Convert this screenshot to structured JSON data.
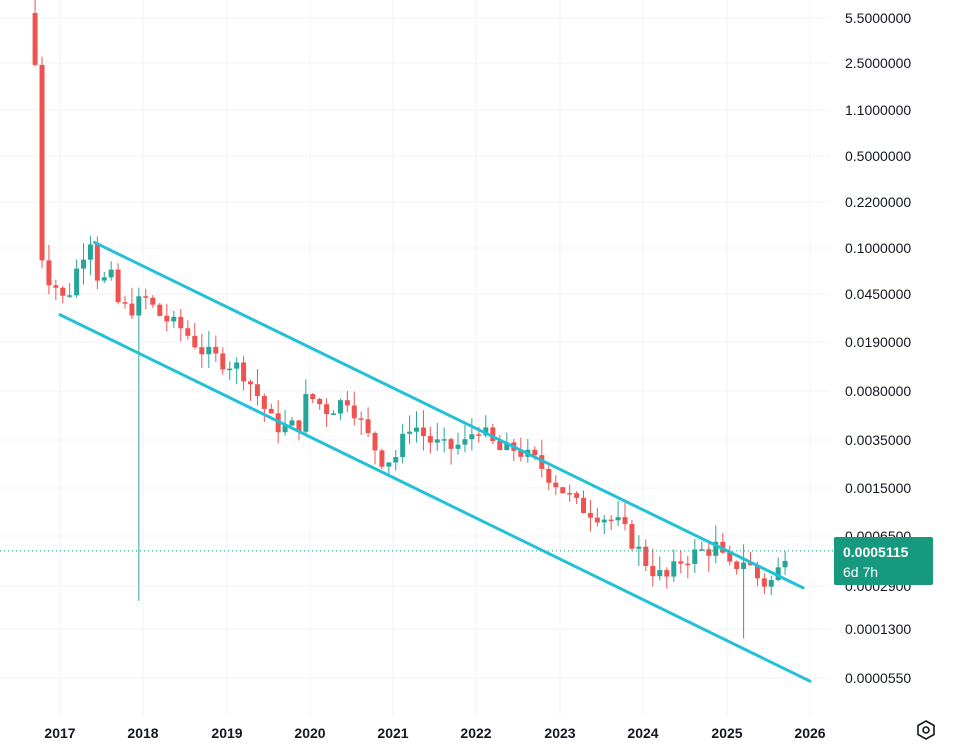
{
  "chart_data": {
    "type": "candlestick",
    "y_scale": "log",
    "y_ticks": [
      "5.5000000",
      "2.5000000",
      "1.1000000",
      "0.5000000",
      "0.2200000",
      "0.1000000",
      "0.0450000",
      "0.0190000",
      "0.0080000",
      "0.0035000",
      "0.0015000",
      "0.0006500",
      "0.0002900",
      "0.0001300",
      "0.0000550"
    ],
    "x_ticks": [
      "2017",
      "2018",
      "2019",
      "2020",
      "2021",
      "2022",
      "2023",
      "2024",
      "2025",
      "2026"
    ],
    "last_price": {
      "value": "0.0005115",
      "countdown": "6d 7h"
    },
    "channel_lines": [
      {
        "name": "upper",
        "points": [
          [
            "2017-06",
            0.11
          ],
          [
            "2025-12",
            0.00028
          ]
        ]
      },
      {
        "name": "lower",
        "points": [
          [
            "2017-01",
            0.031
          ],
          [
            "2026-01",
            5.2e-05
          ]
        ]
      }
    ],
    "grid": true,
    "colors": {
      "up": "#26a69a",
      "down": "#ef5350",
      "channel": "#22c1d6",
      "price_tag": "#16997f",
      "grid": "#f0f3fa"
    }
  }
}
